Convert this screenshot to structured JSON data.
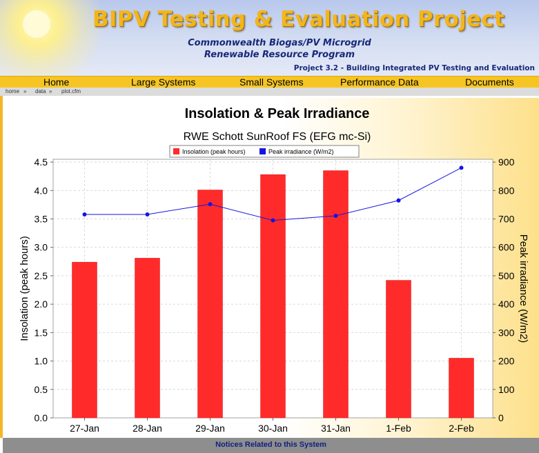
{
  "site": {
    "title": "BIPV Testing & Evaluation Project",
    "subtitle1": "Commonwealth Biogas/PV Microgrid",
    "subtitle2": "Renewable Resource Program",
    "project": "Project 3.2 - Building Integrated PV Testing and Evaluation"
  },
  "nav": {
    "items": [
      {
        "label": "Home"
      },
      {
        "label": "Large Systems"
      },
      {
        "label": "Small Systems"
      },
      {
        "label": "Performance Data"
      },
      {
        "label": "Documents"
      }
    ]
  },
  "breadcrumb": [
    {
      "label": "home"
    },
    {
      "label": "data"
    },
    {
      "label": "plot.cfm"
    }
  ],
  "breadcrumb_sep": "»",
  "footer": {
    "notices": "Notices Related to this System"
  },
  "colors": {
    "bar": "#ff2b2b",
    "line": "#1515e0",
    "nav": "#f6c524",
    "title_gold": "#f2b61c"
  },
  "chart_data": {
    "type": "bar",
    "title": "Insolation & Peak Irradiance",
    "subtitle": "RWE Schott SunRoof FS (EFG mc-Si)",
    "categories": [
      "27-Jan",
      "28-Jan",
      "29-Jan",
      "30-Jan",
      "31-Jan",
      "1-Feb",
      "2-Feb"
    ],
    "series": [
      {
        "name": "Insolation (peak hours)",
        "type": "bar",
        "axis": "left",
        "color": "#ff2b2b",
        "values": [
          2.74,
          2.81,
          4.01,
          4.28,
          4.35,
          2.42,
          1.05
        ]
      },
      {
        "name": "Peak irradiance (W/m2)",
        "type": "line",
        "axis": "right",
        "color": "#1515e0",
        "values": [
          716,
          716,
          752,
          695,
          711,
          765,
          880
        ]
      }
    ],
    "ylabel": "Insolation (peak hours)",
    "y2label": "Peak irradiance (W/m2)",
    "ylim": [
      0,
      4.55
    ],
    "y2lim": [
      0,
      910
    ],
    "yticks": [
      "0.0",
      "0.5",
      "1.0",
      "1.5",
      "2.0",
      "2.5",
      "3.0",
      "3.5",
      "4.0",
      "4.5"
    ],
    "y2ticks": [
      "0",
      "100",
      "200",
      "300",
      "400",
      "500",
      "600",
      "700",
      "800",
      "900"
    ],
    "grid": true,
    "legend": "top-center"
  }
}
